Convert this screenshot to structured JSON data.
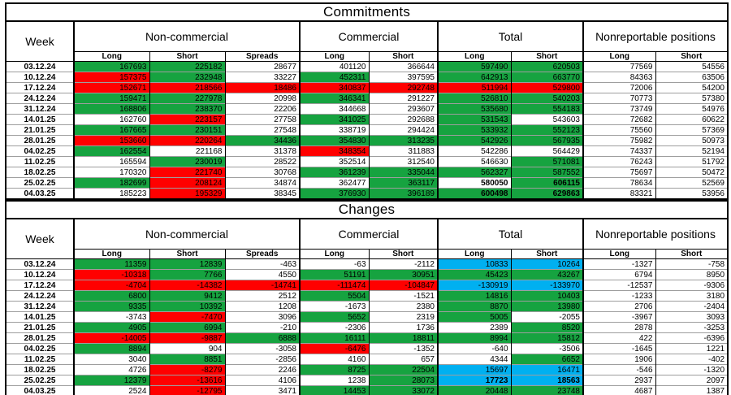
{
  "colors": {
    "green": "#16A340",
    "red": "#FF0000",
    "blue": "#00B0F0",
    "white": "#FFFFFF"
  },
  "header": {
    "week": "Week",
    "groups": [
      {
        "label": "Non-commercial",
        "cols": [
          "Long",
          "Short",
          "Spreads"
        ]
      },
      {
        "label": "Commercial",
        "cols": [
          "Long",
          "Short"
        ]
      },
      {
        "label": "Total",
        "cols": [
          "Long",
          "Short"
        ]
      },
      {
        "label": "Nonreportable positions",
        "cols": [
          "Long",
          "Short"
        ]
      }
    ]
  },
  "tables": [
    {
      "title": "Commitments",
      "rows": [
        {
          "week": "03.12.24",
          "cells": [
            [
              "167693",
              "g"
            ],
            [
              "225182",
              "g"
            ],
            [
              "28677",
              "w"
            ],
            [
              "401120",
              "w"
            ],
            [
              "366644",
              "w"
            ],
            [
              "597490",
              "g"
            ],
            [
              "620503",
              "g"
            ],
            [
              "77569",
              "w"
            ],
            [
              "54556",
              "w"
            ]
          ]
        },
        {
          "week": "10.12.24",
          "cells": [
            [
              "157375",
              "r"
            ],
            [
              "232948",
              "g"
            ],
            [
              "33227",
              "w"
            ],
            [
              "452311",
              "g"
            ],
            [
              "397595",
              "w"
            ],
            [
              "642913",
              "g"
            ],
            [
              "663770",
              "g"
            ],
            [
              "84363",
              "w"
            ],
            [
              "63506",
              "w"
            ]
          ]
        },
        {
          "week": "17.12.24",
          "cells": [
            [
              "152671",
              "r"
            ],
            [
              "218566",
              "r"
            ],
            [
              "18486",
              "r"
            ],
            [
              "340837",
              "r"
            ],
            [
              "292748",
              "r"
            ],
            [
              "511994",
              "r"
            ],
            [
              "529800",
              "r"
            ],
            [
              "72006",
              "w"
            ],
            [
              "54200",
              "w"
            ]
          ]
        },
        {
          "week": "24.12.24",
          "cells": [
            [
              "159471",
              "g"
            ],
            [
              "227978",
              "g"
            ],
            [
              "20998",
              "w"
            ],
            [
              "346341",
              "g"
            ],
            [
              "291227",
              "w"
            ],
            [
              "526810",
              "g"
            ],
            [
              "540203",
              "g"
            ],
            [
              "70773",
              "w"
            ],
            [
              "57380",
              "w"
            ]
          ]
        },
        {
          "week": "31.12.24",
          "cells": [
            [
              "168806",
              "g"
            ],
            [
              "238370",
              "g"
            ],
            [
              "22206",
              "w"
            ],
            [
              "344668",
              "w"
            ],
            [
              "293607",
              "w"
            ],
            [
              "535680",
              "g"
            ],
            [
              "554183",
              "g"
            ],
            [
              "73749",
              "w"
            ],
            [
              "54976",
              "w"
            ]
          ]
        },
        {
          "week": "14.01.25",
          "cells": [
            [
              "162760",
              "w"
            ],
            [
              "223157",
              "r"
            ],
            [
              "27758",
              "w"
            ],
            [
              "341025",
              "g"
            ],
            [
              "292688",
              "w"
            ],
            [
              "531543",
              "g"
            ],
            [
              "543603",
              "w"
            ],
            [
              "72682",
              "w"
            ],
            [
              "60622",
              "w"
            ]
          ]
        },
        {
          "week": "21.01.25",
          "cells": [
            [
              "167665",
              "g"
            ],
            [
              "230151",
              "g"
            ],
            [
              "27548",
              "w"
            ],
            [
              "338719",
              "w"
            ],
            [
              "294424",
              "w"
            ],
            [
              "533932",
              "g"
            ],
            [
              "552123",
              "g"
            ],
            [
              "75560",
              "w"
            ],
            [
              "57369",
              "w"
            ]
          ]
        },
        {
          "week": "28.01.25",
          "cells": [
            [
              "153660",
              "r"
            ],
            [
              "220264",
              "r"
            ],
            [
              "34436",
              "g"
            ],
            [
              "354830",
              "g"
            ],
            [
              "313235",
              "g"
            ],
            [
              "542926",
              "g"
            ],
            [
              "567935",
              "g"
            ],
            [
              "75982",
              "w"
            ],
            [
              "50973",
              "w"
            ]
          ]
        },
        {
          "week": "04.02.25",
          "cells": [
            [
              "162554",
              "g"
            ],
            [
              "221168",
              "w"
            ],
            [
              "31378",
              "w"
            ],
            [
              "348354",
              "r"
            ],
            [
              "311883",
              "w"
            ],
            [
              "542286",
              "w"
            ],
            [
              "564429",
              "w"
            ],
            [
              "74337",
              "w"
            ],
            [
              "52194",
              "w"
            ]
          ]
        },
        {
          "week": "11.02.25",
          "cells": [
            [
              "165594",
              "w"
            ],
            [
              "230019",
              "g"
            ],
            [
              "28522",
              "w"
            ],
            [
              "352514",
              "w"
            ],
            [
              "312540",
              "w"
            ],
            [
              "546630",
              "w"
            ],
            [
              "571081",
              "g"
            ],
            [
              "76243",
              "w"
            ],
            [
              "51792",
              "w"
            ]
          ]
        },
        {
          "week": "18.02.25",
          "cells": [
            [
              "170320",
              "w"
            ],
            [
              "221740",
              "r"
            ],
            [
              "30768",
              "w"
            ],
            [
              "361239",
              "g"
            ],
            [
              "335044",
              "g"
            ],
            [
              "562327",
              "g"
            ],
            [
              "587552",
              "g"
            ],
            [
              "75697",
              "w"
            ],
            [
              "50472",
              "w"
            ]
          ]
        },
        {
          "week": "25.02.25",
          "cells": [
            [
              "182699",
              "g"
            ],
            [
              "208124",
              "r"
            ],
            [
              "34874",
              "w"
            ],
            [
              "362477",
              "w"
            ],
            [
              "363117",
              "g"
            ],
            [
              "580050",
              "w",
              1
            ],
            [
              "606115",
              "g",
              1
            ],
            [
              "78634",
              "w"
            ],
            [
              "52569",
              "w"
            ]
          ]
        },
        {
          "week": "04.03.25",
          "cells": [
            [
              "185223",
              "w"
            ],
            [
              "195329",
              "r"
            ],
            [
              "38345",
              "w"
            ],
            [
              "376930",
              "g"
            ],
            [
              "396189",
              "g"
            ],
            [
              "600498",
              "g",
              1
            ],
            [
              "629863",
              "g",
              1
            ],
            [
              "83321",
              "w"
            ],
            [
              "53956",
              "w"
            ]
          ]
        }
      ]
    },
    {
      "title": "Changes",
      "rows": [
        {
          "week": "03.12.24",
          "cells": [
            [
              "11359",
              "g"
            ],
            [
              "12839",
              "g"
            ],
            [
              "-463",
              "w"
            ],
            [
              "-63",
              "w"
            ],
            [
              "-2112",
              "w"
            ],
            [
              "10833",
              "b"
            ],
            [
              "10264",
              "b"
            ],
            [
              "-1327",
              "w"
            ],
            [
              "-758",
              "w"
            ]
          ]
        },
        {
          "week": "10.12.24",
          "cells": [
            [
              "-10318",
              "r"
            ],
            [
              "7766",
              "g"
            ],
            [
              "4550",
              "w"
            ],
            [
              "51191",
              "g"
            ],
            [
              "30951",
              "g"
            ],
            [
              "45423",
              "g"
            ],
            [
              "43267",
              "g"
            ],
            [
              "6794",
              "w"
            ],
            [
              "8950",
              "w"
            ]
          ]
        },
        {
          "week": "17.12.24",
          "cells": [
            [
              "-4704",
              "r"
            ],
            [
              "-14382",
              "r"
            ],
            [
              "-14741",
              "r"
            ],
            [
              "-111474",
              "r"
            ],
            [
              "-104847",
              "r"
            ],
            [
              "-130919",
              "b"
            ],
            [
              "-133970",
              "b"
            ],
            [
              "-12537",
              "w"
            ],
            [
              "-9306",
              "w"
            ]
          ]
        },
        {
          "week": "24.12.24",
          "cells": [
            [
              "6800",
              "g"
            ],
            [
              "9412",
              "g"
            ],
            [
              "2512",
              "w"
            ],
            [
              "5504",
              "g"
            ],
            [
              "-1521",
              "w"
            ],
            [
              "14816",
              "g"
            ],
            [
              "10403",
              "g"
            ],
            [
              "-1233",
              "w"
            ],
            [
              "3180",
              "w"
            ]
          ]
        },
        {
          "week": "31.12.24",
          "cells": [
            [
              "9335",
              "g"
            ],
            [
              "10392",
              "g"
            ],
            [
              "1208",
              "w"
            ],
            [
              "-1673",
              "w"
            ],
            [
              "2380",
              "w"
            ],
            [
              "8870",
              "g"
            ],
            [
              "13980",
              "g"
            ],
            [
              "2706",
              "w"
            ],
            [
              "-2404",
              "w"
            ]
          ]
        },
        {
          "week": "14.01.25",
          "cells": [
            [
              "-3743",
              "w"
            ],
            [
              "-7470",
              "r"
            ],
            [
              "3096",
              "w"
            ],
            [
              "5652",
              "g"
            ],
            [
              "2319",
              "w"
            ],
            [
              "5005",
              "g"
            ],
            [
              "-2055",
              "w"
            ],
            [
              "-3967",
              "w"
            ],
            [
              "3093",
              "w"
            ]
          ]
        },
        {
          "week": "21.01.25",
          "cells": [
            [
              "4905",
              "g"
            ],
            [
              "6994",
              "g"
            ],
            [
              "-210",
              "w"
            ],
            [
              "-2306",
              "w"
            ],
            [
              "1736",
              "w"
            ],
            [
              "2389",
              "w"
            ],
            [
              "8520",
              "g"
            ],
            [
              "2878",
              "w"
            ],
            [
              "-3253",
              "w"
            ]
          ]
        },
        {
          "week": "28.01.25",
          "cells": [
            [
              "-14005",
              "r"
            ],
            [
              "-9887",
              "r"
            ],
            [
              "6888",
              "g"
            ],
            [
              "16111",
              "g"
            ],
            [
              "18811",
              "g"
            ],
            [
              "8994",
              "g"
            ],
            [
              "15812",
              "g"
            ],
            [
              "422",
              "w"
            ],
            [
              "-6396",
              "w"
            ]
          ]
        },
        {
          "week": "04.02.25",
          "cells": [
            [
              "8894",
              "g"
            ],
            [
              "904",
              "w"
            ],
            [
              "-3058",
              "w"
            ],
            [
              "-6476",
              "r"
            ],
            [
              "-1352",
              "w"
            ],
            [
              "-640",
              "w"
            ],
            [
              "-3506",
              "w"
            ],
            [
              "-1645",
              "w"
            ],
            [
              "1221",
              "w"
            ]
          ]
        },
        {
          "week": "11.02.25",
          "cells": [
            [
              "3040",
              "w"
            ],
            [
              "8851",
              "g"
            ],
            [
              "-2856",
              "w"
            ],
            [
              "4160",
              "w"
            ],
            [
              "657",
              "w"
            ],
            [
              "4344",
              "w"
            ],
            [
              "6652",
              "g"
            ],
            [
              "1906",
              "w"
            ],
            [
              "-402",
              "w"
            ]
          ]
        },
        {
          "week": "18.02.25",
          "cells": [
            [
              "4726",
              "w"
            ],
            [
              "-8279",
              "r"
            ],
            [
              "2246",
              "w"
            ],
            [
              "8725",
              "g"
            ],
            [
              "22504",
              "g"
            ],
            [
              "15697",
              "b"
            ],
            [
              "16471",
              "b"
            ],
            [
              "-546",
              "w"
            ],
            [
              "-1320",
              "w"
            ]
          ]
        },
        {
          "week": "25.02.25",
          "cells": [
            [
              "12379",
              "g"
            ],
            [
              "-13616",
              "r"
            ],
            [
              "4106",
              "w"
            ],
            [
              "1238",
              "w"
            ],
            [
              "28073",
              "g"
            ],
            [
              "17723",
              "b",
              1
            ],
            [
              "18563",
              "b",
              1
            ],
            [
              "2937",
              "w"
            ],
            [
              "2097",
              "w"
            ]
          ]
        },
        {
          "week": "04.03.25",
          "cells": [
            [
              "2524",
              "w"
            ],
            [
              "-12795",
              "r"
            ],
            [
              "3471",
              "w"
            ],
            [
              "14453",
              "g"
            ],
            [
              "33072",
              "g"
            ],
            [
              "20448",
              "g"
            ],
            [
              "23748",
              "g"
            ],
            [
              "4687",
              "w"
            ],
            [
              "1387",
              "w"
            ]
          ]
        }
      ]
    }
  ]
}
